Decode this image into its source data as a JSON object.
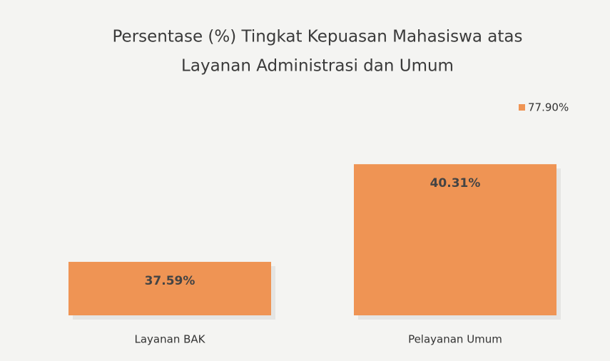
{
  "chart_data": {
    "type": "bar",
    "title": [
      "Persentase (%) Tingkat Kepuasan Mahasiswa atas",
      "Layanan Administrasi dan Umum"
    ],
    "categories": [
      "Layanan BAK",
      "Pelayanan Umum"
    ],
    "series": [
      {
        "name": "77.90%",
        "color": "#ef9454",
        "values": [
          37.59,
          40.31
        ],
        "value_labels": [
          "37.59%",
          "40.31%"
        ]
      }
    ],
    "ylim": [
      36.1,
      42.3
    ]
  }
}
